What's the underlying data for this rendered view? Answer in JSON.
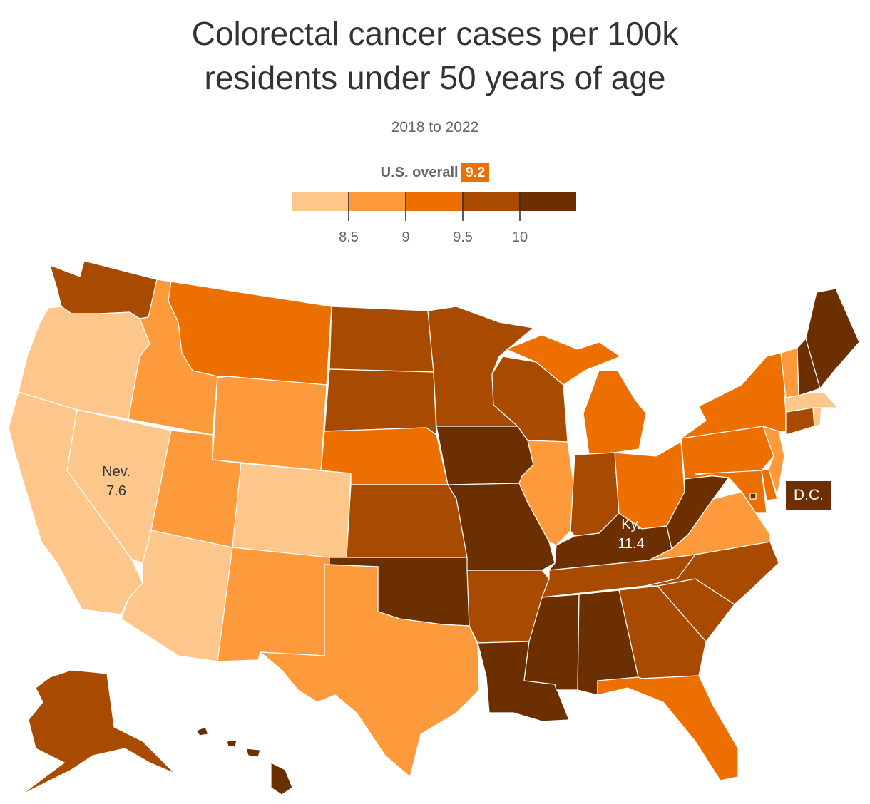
{
  "title_line1": "Colorectal cancer cases per 100k",
  "title_line2": "residents under 50 years of age",
  "subtitle": "2018 to 2022",
  "legend": {
    "overall_label": "U.S. overall",
    "overall_value": "9.2",
    "colors": [
      "#fdc68a",
      "#fd9a3c",
      "#ec6f00",
      "#a84b00",
      "#6b2f00"
    ],
    "ticks": [
      "8.5",
      "9",
      "9.5",
      "10"
    ]
  },
  "labels": {
    "nev_name": "Nev.",
    "nev_value": "7.6",
    "ky_name": "Ky.",
    "ky_value": "11.4",
    "dc_name": "D.C."
  },
  "map_data": {
    "type": "choropleth",
    "bins": [
      {
        "range": "<8.5",
        "color": "#fdc68a"
      },
      {
        "range": "8.5–9",
        "color": "#fd9a3c"
      },
      {
        "range": "9–9.5",
        "color": "#ec6f00"
      },
      {
        "range": "9.5–10",
        "color": "#a84b00"
      },
      {
        "range": ">10",
        "color": "#6b2f00"
      }
    ],
    "states": {
      "WA": 4,
      "OR": 1,
      "CA": 1,
      "NV": 1,
      "ID": 2,
      "MT": 3,
      "WY": 2,
      "UT": 2,
      "AZ": 1,
      "CO": 1,
      "NM": 2,
      "ND": 4,
      "SD": 4,
      "NE": 3,
      "KS": 4,
      "OK": 5,
      "TX": 2,
      "MN": 4,
      "IA": 5,
      "MO": 5,
      "AR": 4,
      "LA": 5,
      "WI": 4,
      "IL": 2,
      "MI": 3,
      "IN": 4,
      "OH": 3,
      "KY": 5,
      "TN": 4,
      "MS": 5,
      "AL": 5,
      "GA": 4,
      "FL": 3,
      "SC": 4,
      "NC": 4,
      "VA": 2,
      "WV": 5,
      "PA": 3,
      "NY": 3,
      "VT": 2,
      "NH": 5,
      "ME": 5,
      "MA": 1,
      "RI": 1,
      "CT": 4,
      "NJ": 2,
      "DE": 3,
      "MD": 3,
      "DC": 5,
      "AK": 4,
      "HI": 5
    }
  }
}
